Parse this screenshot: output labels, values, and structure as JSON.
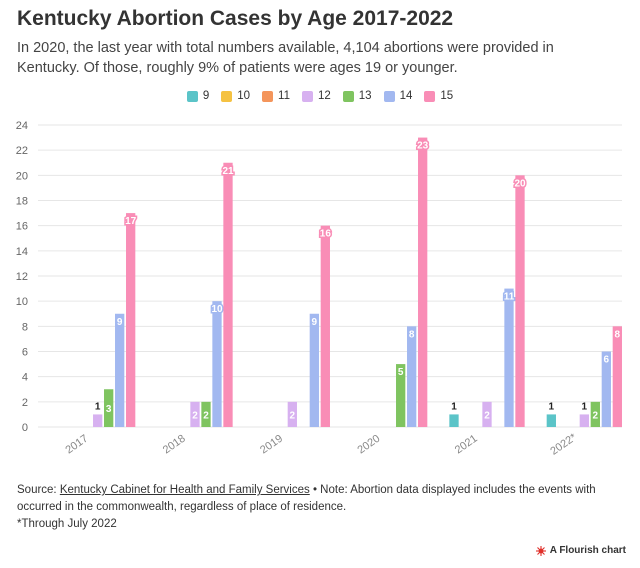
{
  "header": {
    "title": "Kentucky Abortion Cases by Age 2017-2022",
    "subtitle": "In 2020, the last year with total numbers available, 4,104 abortions were provided in Kentucky. Of those, roughly 9% of patients were ages 19 or younger."
  },
  "chart_data": {
    "type": "bar",
    "categories": [
      "2017",
      "2018",
      "2019",
      "2020",
      "2021",
      "2022*"
    ],
    "series": [
      {
        "name": "9",
        "color": "#5bc4c8",
        "values": [
          0,
          0,
          0,
          0,
          1,
          1
        ]
      },
      {
        "name": "10",
        "color": "#f5c242",
        "values": [
          0,
          0,
          0,
          0,
          0,
          0
        ]
      },
      {
        "name": "11",
        "color": "#f4955b",
        "values": [
          0,
          0,
          0,
          0,
          0,
          0
        ]
      },
      {
        "name": "12",
        "color": "#d7b1f0",
        "values": [
          1,
          2,
          2,
          0,
          2,
          1
        ]
      },
      {
        "name": "13",
        "color": "#7fc460",
        "values": [
          3,
          2,
          0,
          5,
          0,
          2
        ]
      },
      {
        "name": "14",
        "color": "#a2b8f0",
        "values": [
          9,
          10,
          9,
          8,
          11,
          6
        ]
      },
      {
        "name": "15",
        "color": "#f98db6",
        "values": [
          17,
          21,
          16,
          23,
          20,
          8
        ]
      }
    ],
    "yticks": [
      "0",
      "2",
      "4",
      "6",
      "8",
      "10",
      "12",
      "14",
      "16",
      "18",
      "20",
      "22",
      "24"
    ],
    "ylim": [
      0,
      24
    ],
    "grid": true,
    "legend_position": "top-center",
    "data_labels": true
  },
  "footer": {
    "source_prefix": "Source: ",
    "source_link": "Kentucky Cabinet for Health and Family Services",
    "bullet": " • ",
    "note": "Note: Abortion data displayed includes the events with occurred in the commonwealth, regardless of place of residence.",
    "footnote": "*Through July 2022"
  },
  "credit": {
    "label": "A Flourish chart",
    "icon": "flourish-logo-icon",
    "color": "#e0302b"
  }
}
